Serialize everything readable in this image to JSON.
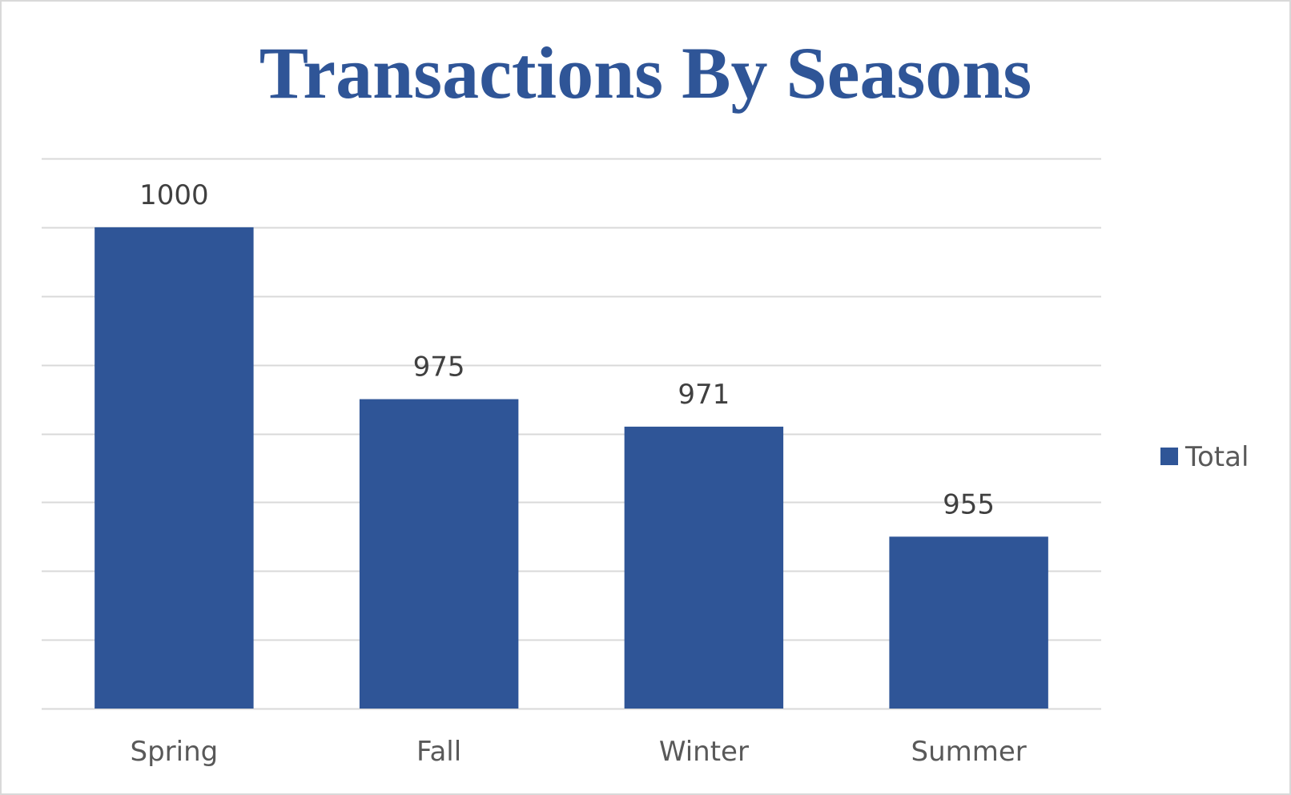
{
  "chart_data": {
    "type": "bar",
    "title": "Transactions By Seasons",
    "categories": [
      "Spring",
      "Fall",
      "Winter",
      "Summer"
    ],
    "series": [
      {
        "name": "Total",
        "values": [
          1000,
          975,
          971,
          955
        ]
      }
    ],
    "xlabel": "",
    "ylabel": "",
    "ylim": [
      930,
      1010
    ],
    "gridline_step": 10,
    "y_tick_labels_shown": false,
    "grid": true,
    "legend": "right",
    "colors": {
      "bar": "#2f5597",
      "title": "#2f5597",
      "gridline": "#d9d9d9"
    }
  }
}
